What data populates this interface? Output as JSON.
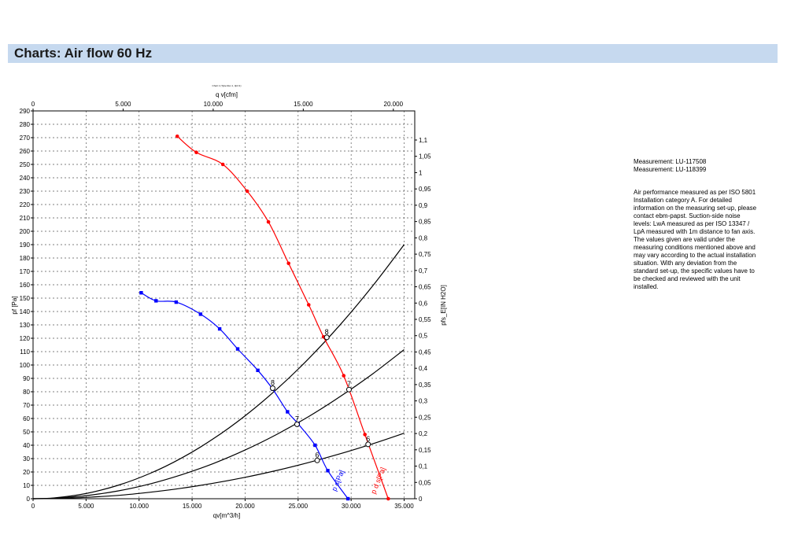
{
  "header": {
    "title": "Charts: Air flow 60 Hz"
  },
  "chart_data": {
    "type": "line",
    "top_caption": "Chart 1 (Tyke Rev 1, 3pt=1)",
    "xlabel": "qv[m^3/h]",
    "x2label": "q v[cfm]",
    "ylabel": "pf [Pa]",
    "y2label": "pfs_E[IN H2O]",
    "xlim": [
      0,
      36000
    ],
    "ylim": [
      0,
      290
    ],
    "x_ticks": [
      0,
      5000,
      10000,
      15000,
      20000,
      25000,
      30000,
      35000
    ],
    "x_tick_labels": [
      "0",
      "5.000",
      "10.000",
      "15.000",
      "20.000",
      "25.000",
      "30.000",
      "35.000"
    ],
    "x2_ticks": [
      0,
      5000,
      10000,
      15000,
      20000
    ],
    "x2_tick_labels": [
      "0",
      "5.000",
      "10.000",
      "15.000",
      "20.000"
    ],
    "y_ticks": [
      0,
      10,
      20,
      30,
      40,
      50,
      60,
      70,
      80,
      90,
      100,
      110,
      120,
      130,
      140,
      150,
      160,
      170,
      180,
      190,
      200,
      210,
      220,
      230,
      240,
      250,
      260,
      270,
      280,
      290
    ],
    "y2_ticks": [
      0,
      0.05,
      0.1,
      0.15,
      0.2,
      0.25,
      0.3,
      0.35,
      0.4,
      0.45,
      0.5,
      0.55,
      0.6,
      0.65,
      0.7,
      0.75,
      0.8,
      0.85,
      0.9,
      0.95,
      1,
      1.05,
      1.1
    ],
    "y2_tick_labels": [
      "0",
      "0,05",
      "0,1",
      "0,15",
      "0,2",
      "0,25",
      "0,3",
      "0,35",
      "0,4",
      "0,45",
      "0,5",
      "0,55",
      "0,6",
      "0,65",
      "0,7",
      "0,75",
      "0,8",
      "0,85",
      "0,9",
      "0,95",
      "1",
      "1,05",
      "1,1"
    ],
    "grid": true,
    "series": [
      {
        "name": "p d s[Pa]",
        "color": "#ff0000",
        "marker": "circle",
        "x": [
          13600,
          15400,
          17900,
          20200,
          22200,
          24100,
          26000,
          27400,
          29300,
          31300,
          33500
        ],
        "y": [
          271,
          259,
          250,
          230,
          207,
          176,
          145,
          121,
          92,
          48,
          0
        ]
      },
      {
        "name": "p s[Pa]",
        "color": "#0000ff",
        "marker": "square",
        "x": [
          10200,
          11600,
          13500,
          15800,
          17600,
          19300,
          21200,
          22600,
          24000,
          25000,
          26600,
          27800,
          29700
        ],
        "y": [
          154,
          148,
          147,
          138,
          127,
          112,
          96,
          82,
          65,
          56,
          40,
          21,
          0
        ]
      }
    ],
    "system_curves": [
      {
        "label": "8",
        "x": [
          0,
          2000,
          5000,
          8000,
          11000,
          14000,
          17000,
          20000,
          23000,
          26000,
          29000,
          32000,
          35000
        ],
        "y": [
          0,
          0.6,
          3.9,
          10,
          18.8,
          30.4,
          44.8,
          62,
          82,
          104.8,
          130.4,
          158.8,
          190
        ]
      },
      {
        "label": "7",
        "x": [
          0,
          2000,
          5000,
          8000,
          11000,
          14000,
          17000,
          20000,
          23000,
          26000,
          29000,
          32000,
          35000
        ],
        "y": [
          0,
          0.36,
          2.3,
          5.8,
          11,
          17.9,
          26.3,
          36.4,
          48.2,
          61.5,
          76.6,
          93.2,
          111.5
        ]
      },
      {
        "label": "6",
        "x": [
          0,
          2000,
          5000,
          8000,
          11000,
          14000,
          17000,
          20000,
          23000,
          26000,
          29000,
          32000,
          35000
        ],
        "y": [
          0,
          0.16,
          1,
          2.5,
          4.8,
          7.8,
          11.6,
          16,
          21.2,
          27.1,
          33.7,
          41,
          49
        ]
      }
    ],
    "annotations": [
      {
        "text": "8",
        "x": 22600,
        "y": 85
      },
      {
        "text": "7",
        "x": 24900,
        "y": 58
      },
      {
        "text": "6",
        "x": 26800,
        "y": 31
      },
      {
        "text": "8",
        "x": 27700,
        "y": 123
      },
      {
        "text": "7",
        "x": 29800,
        "y": 84
      },
      {
        "text": "6",
        "x": 31600,
        "y": 43
      }
    ]
  },
  "side_panel": {
    "measurement_lines": [
      "Measurement: LU-117508",
      "Measurement: LU-118399"
    ],
    "description_lines": [
      "Air performance measured as per ISO 5801",
      "Installation category A. For detailed",
      "information on the measuring set-up, please",
      "contact ebm-papst. Suction-side noise",
      "levels: LwA measured as per ISO 13347 /",
      "LpA measured with 1m distance to fan axis.",
      "The values given are valid under the",
      "measuring conditions mentioned above and",
      "may vary according to the actual installation",
      "situation. With any deviation from the",
      "standard set-up, the specific values have to",
      "be checked and reviewed with the unit",
      "installed."
    ]
  }
}
